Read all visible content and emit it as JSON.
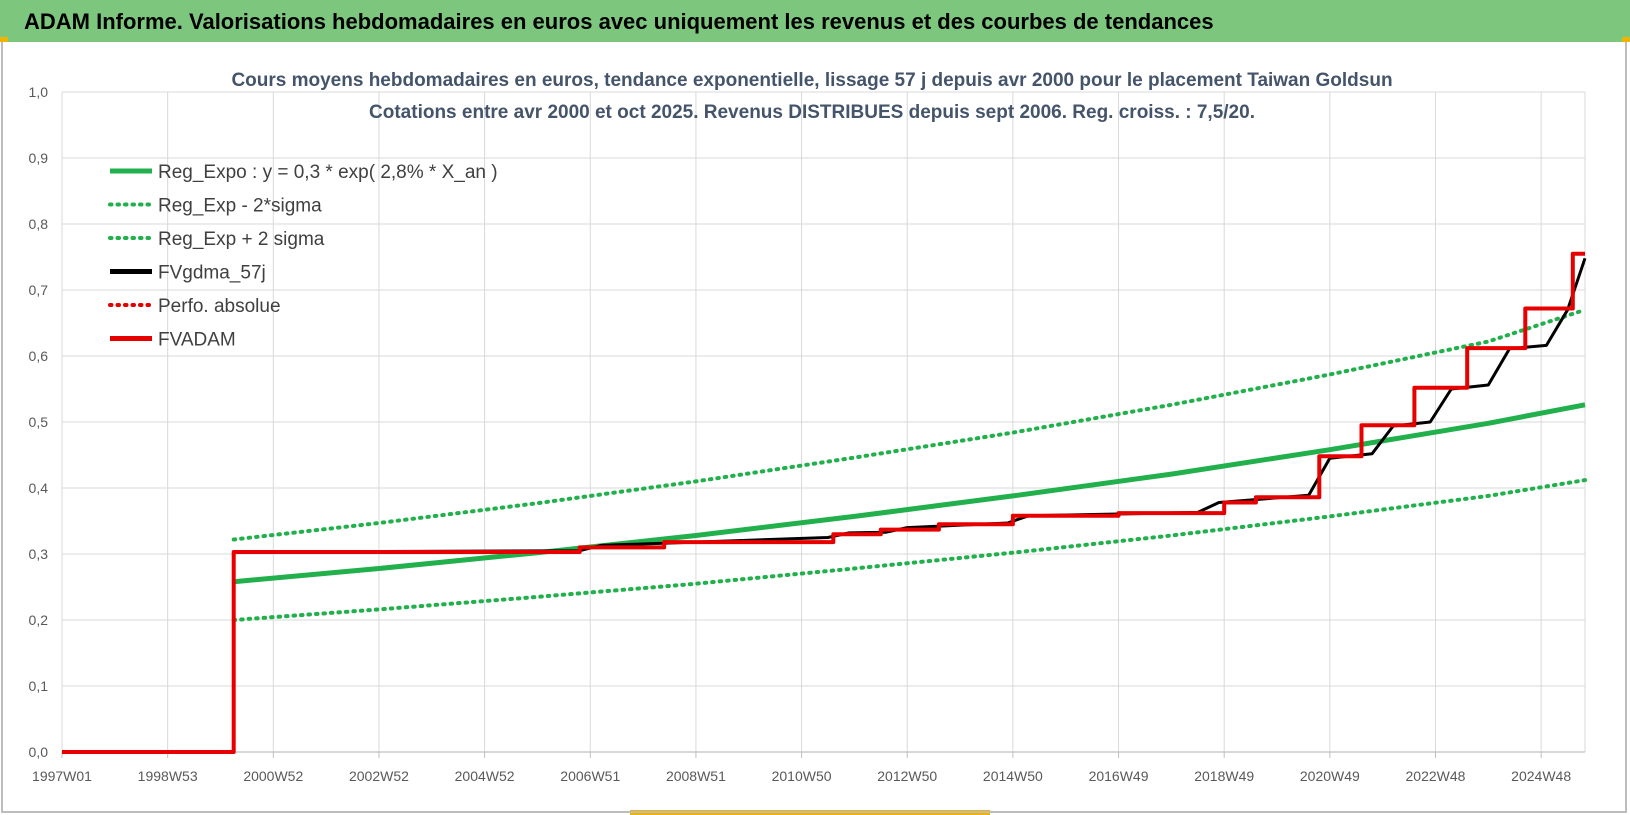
{
  "header": {
    "title": "ADAM Informe. Valorisations hebdomadaires en euros avec uniquement les revenus et des courbes de tendances",
    "background": "#7dc67d"
  },
  "chart_data": {
    "type": "line",
    "title": "Cours moyens hebdomadaires en euros, tendance exponentielle, lissage 57 j depuis avr 2000 pour le placement Taiwan Goldsun",
    "subtitle": "Cotations entre avr 2000 et oct 2025. Revenus DISTRIBUES depuis sept 2006. Reg. croiss. : 7,5/20.",
    "xlabel": "",
    "ylabel": "",
    "x_range": [
      1997.0,
      2025.83
    ],
    "ylim": [
      0,
      1.0
    ],
    "yticks": [
      "0,0",
      "0,1",
      "0,2",
      "0,3",
      "0,4",
      "0,5",
      "0,6",
      "0,7",
      "0,8",
      "0,9",
      "1,0"
    ],
    "xticks": [
      {
        "label": "1997W01",
        "x": 1997.0
      },
      {
        "label": "1998W53",
        "x": 1999.0
      },
      {
        "label": "2000W52",
        "x": 2001.0
      },
      {
        "label": "2002W52",
        "x": 2003.0
      },
      {
        "label": "2004W52",
        "x": 2005.0
      },
      {
        "label": "2006W51",
        "x": 2007.0
      },
      {
        "label": "2008W51",
        "x": 2009.0
      },
      {
        "label": "2010W50",
        "x": 2011.0
      },
      {
        "label": "2012W50",
        "x": 2013.0
      },
      {
        "label": "2014W50",
        "x": 2015.0
      },
      {
        "label": "2016W49",
        "x": 2017.0
      },
      {
        "label": "2018W49",
        "x": 2019.0
      },
      {
        "label": "2020W49",
        "x": 2021.0
      },
      {
        "label": "2022W48",
        "x": 2023.0
      },
      {
        "label": "2024W48",
        "x": 2025.0
      }
    ],
    "grid": true,
    "legend_position": "top-left",
    "series": [
      {
        "name": "Reg_Expo : y = 0,3 * exp( 2,8% *  X_an )",
        "color": "#22b04c",
        "style": "solid",
        "x": [
          2000.25,
          2003.0,
          2006.0,
          2009.0,
          2012.0,
          2015.0,
          2018.0,
          2021.0,
          2024.0,
          2025.83
        ],
        "y": [
          0.258,
          0.278,
          0.302,
          0.328,
          0.357,
          0.388,
          0.421,
          0.458,
          0.498,
          0.526
        ]
      },
      {
        "name": "Reg_Exp - 2*sigma",
        "color": "#22b04c",
        "style": "dotted",
        "x": [
          2000.25,
          2003.0,
          2006.0,
          2009.0,
          2012.0,
          2015.0,
          2018.0,
          2021.0,
          2024.0,
          2025.83
        ],
        "y": [
          0.2,
          0.216,
          0.235,
          0.255,
          0.278,
          0.302,
          0.328,
          0.357,
          0.388,
          0.412
        ]
      },
      {
        "name": "Reg_Exp + 2 sigma",
        "color": "#22b04c",
        "style": "dotted",
        "x": [
          2000.25,
          2003.0,
          2006.0,
          2009.0,
          2012.0,
          2015.0,
          2018.0,
          2021.0,
          2024.0,
          2025.83
        ],
        "y": [
          0.322,
          0.347,
          0.377,
          0.41,
          0.446,
          0.484,
          0.526,
          0.572,
          0.622,
          0.67
        ]
      },
      {
        "name": "FVgdma_57j",
        "color": "#000000",
        "style": "solid",
        "x": [
          2000.25,
          2006.8,
          2007.2,
          2011.5,
          2011.9,
          2012.6,
          2013.0,
          2014.9,
          2015.3,
          2018.5,
          2018.9,
          2020.6,
          2021.0,
          2021.8,
          2022.2,
          2022.9,
          2023.3,
          2024.0,
          2024.4,
          2025.1,
          2025.5,
          2025.83
        ],
        "y": [
          0.303,
          0.305,
          0.313,
          0.325,
          0.332,
          0.333,
          0.34,
          0.347,
          0.358,
          0.363,
          0.378,
          0.389,
          0.445,
          0.452,
          0.494,
          0.5,
          0.55,
          0.556,
          0.611,
          0.616,
          0.67,
          0.748
        ]
      },
      {
        "name": "Perfo. absolue",
        "color": "#e00000",
        "style": "dotted",
        "x": [],
        "y": []
      },
      {
        "name": "FVADAM",
        "color": "#e60000",
        "style": "solid-step",
        "x": [
          1997.0,
          2000.25,
          2000.25,
          2006.8,
          2006.8,
          2008.4,
          2008.4,
          2011.6,
          2011.6,
          2012.5,
          2012.5,
          2013.6,
          2013.6,
          2015.0,
          2015.0,
          2017.0,
          2017.0,
          2019.0,
          2019.0,
          2019.6,
          2019.6,
          2020.8,
          2020.8,
          2021.6,
          2021.6,
          2022.6,
          2022.6,
          2023.6,
          2023.6,
          2024.7,
          2024.7,
          2025.6,
          2025.6,
          2025.83
        ],
        "y": [
          0.0,
          0.0,
          0.303,
          0.303,
          0.31,
          0.31,
          0.318,
          0.318,
          0.33,
          0.33,
          0.337,
          0.337,
          0.345,
          0.345,
          0.358,
          0.358,
          0.362,
          0.362,
          0.378,
          0.378,
          0.386,
          0.386,
          0.448,
          0.448,
          0.495,
          0.495,
          0.552,
          0.552,
          0.612,
          0.612,
          0.672,
          0.672,
          0.755,
          0.755
        ]
      }
    ]
  }
}
